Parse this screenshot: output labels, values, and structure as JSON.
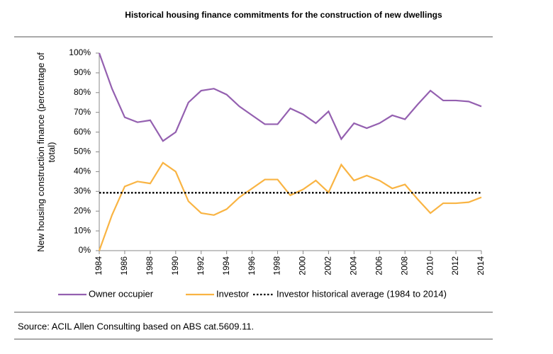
{
  "chart_data": {
    "type": "line",
    "title": "Historical housing finance commitments for the construction of new dwellings",
    "y_label": "New housing construction finance (percentage of total)",
    "source": "Source: ACIL Allen Consulting based on ABS cat.5609.11.",
    "x": [
      1984,
      1985,
      1986,
      1987,
      1988,
      1989,
      1990,
      1991,
      1992,
      1993,
      1994,
      1995,
      1996,
      1997,
      1998,
      1999,
      2000,
      2001,
      2002,
      2003,
      2004,
      2005,
      2006,
      2007,
      2008,
      2009,
      2010,
      2011,
      2012,
      2013,
      2014
    ],
    "series": [
      {
        "name": "Owner occupier",
        "color": "#9460b0",
        "values": [
          100,
          82,
          67.5,
          65,
          66,
          55.5,
          60,
          75,
          81,
          82,
          79,
          73,
          68.5,
          64,
          64,
          72,
          69,
          64.5,
          70.5,
          56.5,
          64.5,
          62,
          64.5,
          68.5,
          66.5,
          74,
          81,
          76,
          76,
          75.5,
          73
        ]
      },
      {
        "name": "Investor",
        "color": "#f9b443",
        "values": [
          0,
          18,
          32.5,
          35,
          34,
          44.5,
          40,
          25,
          19,
          18,
          21,
          27,
          31.5,
          36,
          36,
          28,
          31,
          35.5,
          29.5,
          43.5,
          35.5,
          38,
          35.5,
          31.5,
          33.5,
          26,
          19,
          24,
          24,
          24.5,
          27
        ]
      }
    ],
    "average": {
      "name": "Investor historical average (1984 to 2014)",
      "value": 29.3,
      "color": "#000000"
    },
    "xlim": [
      1984,
      2014
    ],
    "xticks": [
      1984,
      1986,
      1988,
      1990,
      1992,
      1994,
      1996,
      1998,
      2000,
      2002,
      2004,
      2006,
      2008,
      2010,
      2012,
      2014
    ],
    "ylim": [
      0,
      100
    ],
    "yticks": [
      {
        "value": 0,
        "label": "0%"
      },
      {
        "value": 10,
        "label": "10%"
      },
      {
        "value": 20,
        "label": "20%"
      },
      {
        "value": 30,
        "label": "30%"
      },
      {
        "value": 40,
        "label": "40%"
      },
      {
        "value": 50,
        "label": "50%"
      },
      {
        "value": 60,
        "label": "60%"
      },
      {
        "value": 70,
        "label": "70%"
      },
      {
        "value": 80,
        "label": "80%"
      },
      {
        "value": 90,
        "label": "90%"
      },
      {
        "value": 100,
        "label": "100%"
      }
    ]
  }
}
